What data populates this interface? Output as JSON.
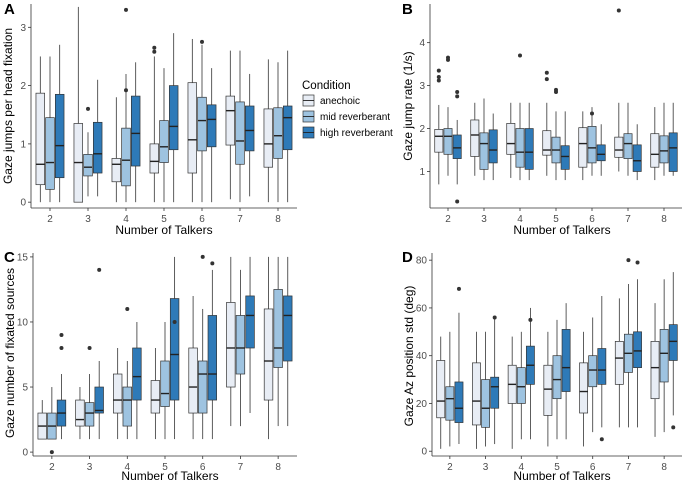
{
  "colors": {
    "anechoic": "#e8edf5",
    "mid reverberant": "#9ec3e0",
    "high reverberant": "#2e7ab8",
    "box_stroke": "#333333",
    "median": "#222222",
    "outlier": "#333333"
  },
  "legend": {
    "title": "Condition",
    "items": [
      "anechoic",
      "mid reverberant",
      "high reverberant"
    ]
  },
  "chart_data": [
    {
      "panel": "A",
      "type": "boxplot",
      "xlabel": "Number of Talkers",
      "ylabel": "Gaze jumps per head fixation",
      "categories": [
        "2",
        "3",
        "4",
        "5",
        "6",
        "7",
        "8"
      ],
      "ylim": [
        -0.1,
        3.4
      ],
      "yticks": [
        0,
        1,
        2,
        3
      ],
      "series": [
        {
          "name": "anechoic",
          "boxes": [
            {
              "lw": 0,
              "q1": 0.3,
              "med": 0.65,
              "q3": 1.87,
              "uw": 2.5
            },
            {
              "lw": 0,
              "q1": 0.0,
              "med": 0.68,
              "q3": 1.35,
              "uw": 3.35
            },
            {
              "lw": 0,
              "q1": 0.35,
              "med": 0.65,
              "q3": 0.75,
              "uw": 1.8
            },
            {
              "lw": 0,
              "q1": 0.5,
              "med": 0.7,
              "q3": 1.0,
              "uw": 2.5
            },
            {
              "lw": 0,
              "q1": 0.5,
              "med": 1.07,
              "q3": 2.05,
              "uw": 2.8
            },
            {
              "lw": 0.05,
              "q1": 0.98,
              "med": 1.57,
              "q3": 1.82,
              "uw": 2.6
            },
            {
              "lw": 0,
              "q1": 0.6,
              "med": 1.0,
              "q3": 1.6,
              "uw": 2.45
            }
          ],
          "outliers": [
            [],
            [],
            [],
            [
              2.65,
              2.58
            ],
            [],
            [],
            []
          ]
        },
        {
          "name": "mid reverberant",
          "boxes": [
            {
              "lw": 0,
              "q1": 0.22,
              "med": 0.68,
              "q3": 1.45,
              "uw": 2.5
            },
            {
              "lw": 0.1,
              "q1": 0.45,
              "med": 0.6,
              "q3": 0.82,
              "uw": 1.2
            },
            {
              "lw": 0,
              "q1": 0.28,
              "med": 0.72,
              "q3": 1.27,
              "uw": 2.2
            },
            {
              "lw": 0,
              "q1": 0.68,
              "med": 0.95,
              "q3": 1.4,
              "uw": 2.3
            },
            {
              "lw": 0,
              "q1": 0.88,
              "med": 1.4,
              "q3": 1.8,
              "uw": 2.7
            },
            {
              "lw": 0,
              "q1": 0.65,
              "med": 1.05,
              "q3": 1.72,
              "uw": 2.6
            },
            {
              "lw": 0,
              "q1": 0.75,
              "med": 1.14,
              "q3": 1.62,
              "uw": 2.4
            }
          ],
          "outliers": [
            [],
            [
              1.6
            ],
            [
              3.3,
              1.92
            ],
            [],
            [
              2.75
            ],
            [],
            []
          ]
        },
        {
          "name": "high reverberant",
          "boxes": [
            {
              "lw": 0,
              "q1": 0.42,
              "med": 0.97,
              "q3": 1.85,
              "uw": 2.7
            },
            {
              "lw": 0.1,
              "q1": 0.5,
              "med": 0.83,
              "q3": 1.37,
              "uw": 2.1
            },
            {
              "lw": 0,
              "q1": 0.62,
              "med": 1.18,
              "q3": 1.82,
              "uw": 2.4
            },
            {
              "lw": 0,
              "q1": 0.9,
              "med": 1.3,
              "q3": 2.0,
              "uw": 2.9
            },
            {
              "lw": 0,
              "q1": 0.95,
              "med": 1.42,
              "q3": 1.67,
              "uw": 2.3
            },
            {
              "lw": 0.1,
              "q1": 0.88,
              "med": 1.23,
              "q3": 1.65,
              "uw": 2.2
            },
            {
              "lw": 0,
              "q1": 0.9,
              "med": 1.45,
              "q3": 1.65,
              "uw": 2.6
            }
          ],
          "outliers": [
            [],
            [],
            [],
            [],
            [],
            [],
            []
          ]
        }
      ]
    },
    {
      "panel": "B",
      "type": "boxplot",
      "xlabel": "Number of Talkers",
      "ylabel": "Gaze jump rate (1/s)",
      "categories": [
        "2",
        "3",
        "4",
        "5",
        "6",
        "7",
        "8"
      ],
      "ylim": [
        0.15,
        4.9
      ],
      "yticks": [
        1,
        2,
        3,
        4
      ],
      "series": [
        {
          "name": "anechoic",
          "boxes": [
            {
              "lw": 0.7,
              "q1": 1.45,
              "med": 1.82,
              "q3": 1.98,
              "uw": 2.55
            },
            {
              "lw": 0.9,
              "q1": 1.35,
              "med": 1.85,
              "q3": 2.2,
              "uw": 2.6
            },
            {
              "lw": 0.85,
              "q1": 1.4,
              "med": 1.65,
              "q3": 2.12,
              "uw": 2.6
            },
            {
              "lw": 0.9,
              "q1": 1.38,
              "med": 1.5,
              "q3": 1.95,
              "uw": 2.6
            },
            {
              "lw": 0.8,
              "q1": 1.1,
              "med": 1.65,
              "q3": 2.02,
              "uw": 2.4
            },
            {
              "lw": 1.0,
              "q1": 1.33,
              "med": 1.5,
              "q3": 1.8,
              "uw": 2.6
            },
            {
              "lw": 0.8,
              "q1": 1.1,
              "med": 1.4,
              "q3": 1.88,
              "uw": 2.5
            }
          ],
          "outliers": [
            [
              3.35,
              3.2,
              3.12
            ],
            [],
            [],
            [
              3.3,
              3.15
            ],
            [],
            [
              4.75
            ],
            []
          ]
        },
        {
          "name": "mid reverberant",
          "boxes": [
            {
              "lw": 0.9,
              "q1": 1.4,
              "med": 1.82,
              "q3": 2.0,
              "uw": 2.5
            },
            {
              "lw": 0.8,
              "q1": 1.05,
              "med": 1.65,
              "q3": 1.9,
              "uw": 2.7
            },
            {
              "lw": 0.8,
              "q1": 1.1,
              "med": 1.45,
              "q3": 2.0,
              "uw": 2.6
            },
            {
              "lw": 0.8,
              "q1": 1.2,
              "med": 1.5,
              "q3": 1.8,
              "uw": 2.4
            },
            {
              "lw": 0.9,
              "q1": 1.2,
              "med": 1.55,
              "q3": 2.05,
              "uw": 2.5
            },
            {
              "lw": 0.9,
              "q1": 1.3,
              "med": 1.65,
              "q3": 1.88,
              "uw": 2.6
            },
            {
              "lw": 0.9,
              "q1": 1.2,
              "med": 1.48,
              "q3": 1.83,
              "uw": 2.6
            }
          ],
          "outliers": [
            [
              3.65,
              3.6
            ],
            [],
            [
              3.7
            ],
            [
              2.9,
              2.85
            ],
            [
              2.35
            ],
            [],
            []
          ]
        },
        {
          "name": "high reverberant",
          "boxes": [
            {
              "lw": 0.7,
              "q1": 1.3,
              "med": 1.55,
              "q3": 1.85,
              "uw": 2.2
            },
            {
              "lw": 0.8,
              "q1": 1.2,
              "med": 1.5,
              "q3": 1.97,
              "uw": 2.35
            },
            {
              "lw": 0.8,
              "q1": 1.05,
              "med": 1.45,
              "q3": 2.0,
              "uw": 2.6
            },
            {
              "lw": 0.8,
              "q1": 1.05,
              "med": 1.35,
              "q3": 1.6,
              "uw": 2.4
            },
            {
              "lw": 0.9,
              "q1": 1.25,
              "med": 1.4,
              "q3": 1.62,
              "uw": 2.1
            },
            {
              "lw": 0.8,
              "q1": 1.0,
              "med": 1.25,
              "q3": 1.62,
              "uw": 2.1
            },
            {
              "lw": 0.9,
              "q1": 1.0,
              "med": 1.55,
              "q3": 1.9,
              "uw": 2.6
            }
          ],
          "outliers": [
            [
              2.85,
              2.75,
              0.3
            ],
            [],
            [],
            [],
            [],
            [],
            []
          ]
        }
      ]
    },
    {
      "panel": "C",
      "type": "boxplot",
      "xlabel": "Number of Talkers",
      "ylabel": "Gaze number of fixated sources",
      "categories": [
        "2",
        "3",
        "4",
        "5",
        "6",
        "7",
        "8"
      ],
      "ylim": [
        -0.3,
        15.3
      ],
      "yticks": [
        0,
        5,
        10,
        15
      ],
      "series": [
        {
          "name": "anechoic",
          "boxes": [
            {
              "lw": 1,
              "q1": 1,
              "med": 2,
              "q3": 3,
              "uw": 4
            },
            {
              "lw": 1,
              "q1": 2,
              "med": 2.5,
              "q3": 4,
              "uw": 5
            },
            {
              "lw": 1,
              "q1": 3,
              "med": 4,
              "q3": 6,
              "uw": 8
            },
            {
              "lw": 1,
              "q1": 3,
              "med": 4,
              "q3": 5.5,
              "uw": 8
            },
            {
              "lw": 1,
              "q1": 3,
              "med": 5,
              "q3": 8,
              "uw": 12
            },
            {
              "lw": 2,
              "q1": 5,
              "med": 8,
              "q3": 11.5,
              "uw": 15
            },
            {
              "lw": 1,
              "q1": 4,
              "med": 7,
              "q3": 11,
              "uw": 15
            }
          ],
          "outliers": [
            [],
            [],
            [],
            [],
            [],
            [],
            []
          ]
        },
        {
          "name": "mid reverberant",
          "boxes": [
            {
              "lw": 1,
              "q1": 1,
              "med": 2,
              "q3": 3,
              "uw": 5
            },
            {
              "lw": 1,
              "q1": 2,
              "med": 3,
              "q3": 3.8,
              "uw": 6
            },
            {
              "lw": 1,
              "q1": 2,
              "med": 4,
              "q3": 5,
              "uw": 7
            },
            {
              "lw": 1,
              "q1": 3.5,
              "med": 4.5,
              "q3": 7,
              "uw": 10
            },
            {
              "lw": 1,
              "q1": 3,
              "med": 6,
              "q3": 7,
              "uw": 11
            },
            {
              "lw": 2,
              "q1": 6,
              "med": 8,
              "q3": 10.5,
              "uw": 14
            },
            {
              "lw": 2,
              "q1": 6.5,
              "med": 8,
              "q3": 12.5,
              "uw": 15
            }
          ],
          "outliers": [
            [
              0
            ],
            [
              8
            ],
            [
              11
            ],
            [],
            [
              15
            ],
            [],
            []
          ]
        },
        {
          "name": "high reverberant",
          "boxes": [
            {
              "lw": 1,
              "q1": 2,
              "med": 3,
              "q3": 4,
              "uw": 6
            },
            {
              "lw": 1,
              "q1": 3,
              "med": 3.2,
              "q3": 5,
              "uw": 7
            },
            {
              "lw": 1,
              "q1": 4,
              "med": 5.8,
              "q3": 8,
              "uw": 10
            },
            {
              "lw": 1,
              "q1": 4,
              "med": 7.5,
              "q3": 11.8,
              "uw": 15
            },
            {
              "lw": 1,
              "q1": 4,
              "med": 6,
              "q3": 10.5,
              "uw": 14
            },
            {
              "lw": 3,
              "q1": 8,
              "med": 10.5,
              "q3": 12,
              "uw": 15
            },
            {
              "lw": 2,
              "q1": 7,
              "med": 10.5,
              "q3": 12,
              "uw": 15
            }
          ],
          "outliers": [
            [
              9,
              8
            ],
            [
              14
            ],
            [],
            [
              10
            ],
            [
              14.5
            ],
            [],
            []
          ]
        }
      ]
    },
    {
      "panel": "D",
      "type": "boxplot",
      "xlabel": "Number of Talkers",
      "ylabel": "Gaze Az position std (deg)",
      "categories": [
        "2",
        "3",
        "4",
        "5",
        "6",
        "7",
        "8"
      ],
      "ylim": [
        -2,
        83
      ],
      "yticks": [
        0,
        20,
        40,
        60,
        80
      ],
      "series": [
        {
          "name": "anechoic",
          "boxes": [
            {
              "lw": 1,
              "q1": 14,
              "med": 21,
              "q3": 38,
              "uw": 48
            },
            {
              "lw": 1,
              "q1": 11,
              "med": 21,
              "q3": 37,
              "uw": 50
            },
            {
              "lw": 1,
              "q1": 20,
              "med": 28,
              "q3": 36,
              "uw": 48
            },
            {
              "lw": 2,
              "q1": 15,
              "med": 26,
              "q3": 36,
              "uw": 50
            },
            {
              "lw": 2,
              "q1": 16,
              "med": 25,
              "q3": 37,
              "uw": 50
            },
            {
              "lw": 10,
              "q1": 28,
              "med": 39,
              "q3": 46,
              "uw": 64
            },
            {
              "lw": 6,
              "q1": 22,
              "med": 35,
              "q3": 46,
              "uw": 62
            }
          ],
          "outliers": [
            [],
            [],
            [],
            [],
            [],
            [],
            []
          ]
        },
        {
          "name": "mid reverberant",
          "boxes": [
            {
              "lw": 2,
              "q1": 13,
              "med": 22,
              "q3": 27,
              "uw": 50
            },
            {
              "lw": 2,
              "q1": 10,
              "med": 18,
              "q3": 30,
              "uw": 50
            },
            {
              "lw": 5,
              "q1": 20,
              "med": 27,
              "q3": 35,
              "uw": 50
            },
            {
              "lw": 5,
              "q1": 22,
              "med": 30,
              "q3": 40,
              "uw": 55
            },
            {
              "lw": 8,
              "q1": 27,
              "med": 34,
              "q3": 40,
              "uw": 56
            },
            {
              "lw": 10,
              "q1": 33,
              "med": 41,
              "q3": 49,
              "uw": 70
            },
            {
              "lw": 8,
              "q1": 29,
              "med": 41,
              "q3": 51,
              "uw": 72
            }
          ],
          "outliers": [
            [],
            [],
            [],
            [],
            [],
            [
              80
            ],
            []
          ]
        },
        {
          "name": "high reverberant",
          "boxes": [
            {
              "lw": 3,
              "q1": 12,
              "med": 18,
              "q3": 29,
              "uw": 58
            },
            {
              "lw": 3,
              "q1": 18,
              "med": 27,
              "q3": 31,
              "uw": 56
            },
            {
              "lw": 5,
              "q1": 28,
              "med": 36,
              "q3": 44,
              "uw": 60
            },
            {
              "lw": 5,
              "q1": 25,
              "med": 35,
              "q3": 51,
              "uw": 62
            },
            {
              "lw": 10,
              "q1": 28,
              "med": 34,
              "q3": 43,
              "uw": 65
            },
            {
              "lw": 10,
              "q1": 35,
              "med": 42,
              "q3": 50,
              "uw": 72
            },
            {
              "lw": 15,
              "q1": 38,
              "med": 46,
              "q3": 53,
              "uw": 75
            }
          ],
          "outliers": [
            [
              68
            ],
            [
              56
            ],
            [
              55
            ],
            [],
            [
              5
            ],
            [
              79
            ],
            [
              10
            ]
          ]
        }
      ]
    }
  ]
}
